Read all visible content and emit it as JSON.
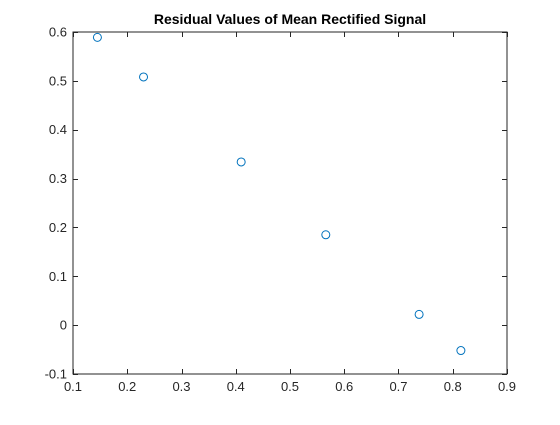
{
  "chart_data": {
    "type": "scatter",
    "title": "Residual Values of Mean Rectified Signal",
    "xlabel": "",
    "ylabel": "",
    "xlim": [
      0.1,
      0.9
    ],
    "ylim": [
      -0.1,
      0.6
    ],
    "xticks": [
      0.1,
      0.2,
      0.3,
      0.4,
      0.5,
      0.6,
      0.7,
      0.8,
      0.9
    ],
    "yticks": [
      -0.1,
      0,
      0.1,
      0.2,
      0.3,
      0.4,
      0.5,
      0.6
    ],
    "xtick_labels": [
      "0.1",
      "0.2",
      "0.3",
      "0.4",
      "0.5",
      "0.6",
      "0.7",
      "0.8",
      "0.9"
    ],
    "ytick_labels": [
      "-0.1",
      "0",
      "0.1",
      "0.2",
      "0.3",
      "0.4",
      "0.5",
      "0.6"
    ],
    "grid": false,
    "marker": "circle-open",
    "marker_color": "#0072BD",
    "axis_color": "#262626",
    "series": [
      {
        "x": [
          0.145,
          0.23,
          0.41,
          0.566,
          0.738,
          0.815
        ],
        "y": [
          0.589,
          0.508,
          0.334,
          0.185,
          0.022,
          -0.052
        ]
      }
    ]
  }
}
